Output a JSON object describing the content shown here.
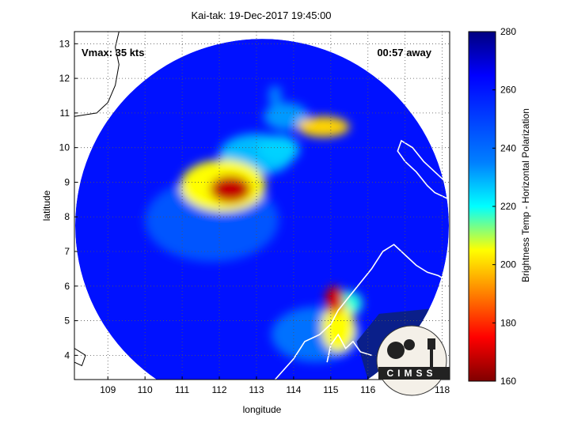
{
  "chart_data": {
    "type": "heatmap",
    "title": "Kai-tak: 19-Dec-2017 19:45:00",
    "xlabel": "longitude",
    "ylabel": "latitude",
    "xlim": [
      108.1,
      118.2
    ],
    "ylim": [
      3.3,
      13.35
    ],
    "xticks": [
      "109",
      "110",
      "111",
      "112",
      "113",
      "114",
      "115",
      "116",
      "117",
      "118"
    ],
    "yticks": [
      "4",
      "5",
      "6",
      "7",
      "8",
      "9",
      "10",
      "11",
      "12",
      "13"
    ],
    "grid": true,
    "colorbar": {
      "label": "Brightness Temp - Horizontal Polarization",
      "min": 160,
      "max": 280,
      "ticks": [
        "160",
        "180",
        "200",
        "220",
        "240",
        "260",
        "280"
      ],
      "colors": [
        "#7f0000",
        "#ff0000",
        "#ffff00",
        "#00ffff",
        "#0000ff",
        "#00007f"
      ]
    },
    "annotations": {
      "vmax": "Vmax: 35 kts",
      "eta": "00:57 away"
    },
    "scan_center": [
      113.15,
      7.75
    ],
    "features": [
      {
        "lon": 112.3,
        "lat": 8.8,
        "value": 168,
        "rx": 0.55,
        "ry": 0.4
      },
      {
        "lon": 112.1,
        "lat": 8.9,
        "value": 205,
        "rx": 1.15,
        "ry": 0.75
      },
      {
        "lon": 113.0,
        "lat": 9.8,
        "value": 232,
        "rx": 1.0,
        "ry": 0.6
      },
      {
        "lon": 113.6,
        "lat": 9.95,
        "value": 228,
        "rx": 0.55,
        "ry": 0.4
      },
      {
        "lon": 114.8,
        "lat": 10.6,
        "value": 200,
        "rx": 0.7,
        "ry": 0.3
      },
      {
        "lon": 113.8,
        "lat": 10.9,
        "value": 238,
        "rx": 0.6,
        "ry": 0.4
      },
      {
        "lon": 113.5,
        "lat": 11.5,
        "value": 242,
        "rx": 0.18,
        "ry": 0.3
      },
      {
        "lon": 115.1,
        "lat": 5.6,
        "value": 170,
        "rx": 0.25,
        "ry": 0.4
      },
      {
        "lon": 115.2,
        "lat": 4.8,
        "value": 205,
        "rx": 0.45,
        "ry": 0.7
      },
      {
        "lon": 115.5,
        "lat": 5.5,
        "value": 218,
        "rx": 0.35,
        "ry": 0.35
      },
      {
        "lon": 111.8,
        "lat": 7.9,
        "value": 250,
        "rx": 1.8,
        "ry": 1.2
      },
      {
        "lon": 114.6,
        "lat": 4.6,
        "value": 245,
        "rx": 1.2,
        "ry": 0.8
      }
    ],
    "background_value": 262,
    "coastline": true,
    "logo_text": "CIMSS"
  }
}
